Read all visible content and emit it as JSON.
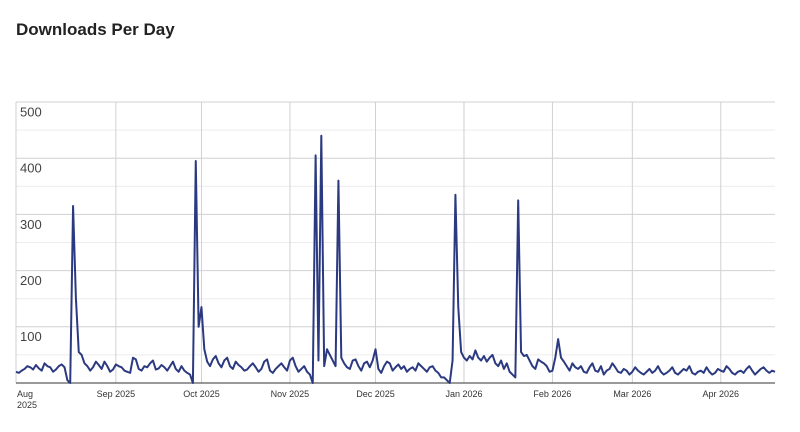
{
  "chart_data": {
    "type": "line",
    "title": "Downloads Per Day",
    "color": "#2b3a80",
    "grid": true,
    "ylim": [
      0,
      500
    ],
    "yticks": [
      100,
      200,
      300,
      400,
      500
    ],
    "categories": [
      "Aug 2025",
      null,
      null,
      null,
      null,
      null,
      null,
      null,
      null,
      null,
      null,
      null,
      null,
      null,
      null,
      null,
      null,
      null,
      null,
      null,
      null,
      null,
      null,
      null,
      null,
      null,
      null,
      null,
      null,
      null,
      null,
      null,
      null,
      null,
      null,
      "Sep 2025",
      null,
      null,
      null,
      null,
      null,
      null,
      null,
      null,
      null,
      null,
      null,
      null,
      null,
      null,
      null,
      null,
      null,
      null,
      null,
      null,
      null,
      null,
      null,
      null,
      null,
      null,
      null,
      null,
      null,
      "Oct 2025",
      null,
      null,
      null,
      null,
      null,
      null,
      null,
      null,
      null,
      null,
      null,
      null,
      null,
      null,
      null,
      null,
      null,
      null,
      null,
      null,
      null,
      null,
      null,
      null,
      null,
      null,
      null,
      null,
      null,
      null,
      "Nov 2025",
      null,
      null,
      null,
      null,
      null,
      null,
      null,
      null,
      null,
      null,
      null,
      null,
      null,
      null,
      null,
      null,
      null,
      null,
      null,
      null,
      null,
      null,
      null,
      null,
      null,
      null,
      null,
      null,
      null,
      "Dec 2025",
      null,
      null,
      null,
      null,
      null,
      null,
      null,
      null,
      null,
      null,
      null,
      null,
      null,
      null,
      null,
      null,
      null,
      null,
      null,
      null,
      null,
      null,
      null,
      null,
      null,
      null,
      null,
      null,
      null,
      null,
      "Jan 2026",
      null,
      null,
      null,
      null,
      null,
      null,
      null,
      null,
      null,
      null,
      null,
      null,
      null,
      null,
      null,
      null,
      null,
      null,
      null,
      null,
      null,
      null,
      null,
      null,
      null,
      null,
      null,
      null,
      null,
      null,
      "Feb 2026",
      null,
      null,
      null,
      null,
      null,
      null,
      null,
      null,
      null,
      null,
      null,
      null,
      null,
      null,
      null,
      null,
      null,
      null,
      null,
      null,
      null,
      null,
      null,
      null,
      null,
      null,
      null,
      "Mar 2026",
      null,
      null,
      null,
      null,
      null,
      null,
      null,
      null,
      null,
      null,
      null,
      null,
      null,
      null,
      null,
      null,
      null,
      null,
      null,
      null,
      null,
      null,
      null,
      null,
      null,
      null,
      null,
      null,
      null,
      null,
      "Apr 2026",
      null,
      null,
      null,
      null,
      null,
      null,
      null,
      null,
      null,
      null,
      null,
      null,
      null,
      null,
      null,
      null,
      null,
      null,
      null
    ],
    "values": [
      20,
      18,
      22,
      25,
      30,
      28,
      24,
      32,
      26,
      22,
      35,
      30,
      28,
      20,
      24,
      30,
      33,
      28,
      5,
      0,
      315,
      150,
      55,
      50,
      35,
      30,
      22,
      28,
      38,
      32,
      25,
      38,
      30,
      20,
      24,
      33,
      30,
      28,
      22,
      20,
      18,
      45,
      42,
      25,
      22,
      30,
      28,
      35,
      40,
      24,
      26,
      32,
      28,
      22,
      30,
      38,
      25,
      20,
      30,
      22,
      18,
      15,
      0,
      395,
      100,
      135,
      60,
      38,
      30,
      42,
      48,
      35,
      28,
      40,
      45,
      30,
      25,
      38,
      32,
      28,
      22,
      24,
      30,
      35,
      28,
      20,
      25,
      38,
      42,
      22,
      18,
      25,
      30,
      35,
      28,
      22,
      40,
      45,
      30,
      20,
      25,
      30,
      20,
      15,
      0,
      405,
      40,
      440,
      30,
      60,
      50,
      40,
      30,
      360,
      45,
      35,
      28,
      25,
      40,
      42,
      30,
      22,
      35,
      38,
      28,
      40,
      60,
      25,
      18,
      30,
      38,
      35,
      22,
      28,
      33,
      25,
      30,
      20,
      25,
      28,
      22,
      35,
      30,
      25,
      20,
      28,
      30,
      22,
      18,
      10,
      10,
      5,
      0,
      40,
      335,
      135,
      55,
      45,
      40,
      48,
      42,
      58,
      45,
      40,
      48,
      38,
      45,
      50,
      35,
      30,
      40,
      25,
      35,
      20,
      15,
      10,
      325,
      55,
      48,
      50,
      40,
      30,
      25,
      42,
      38,
      35,
      30,
      20,
      22,
      45,
      78,
      45,
      38,
      30,
      22,
      35,
      28,
      25,
      30,
      20,
      18,
      28,
      35,
      22,
      20,
      30,
      15,
      22,
      25,
      35,
      28,
      20,
      18,
      25,
      22,
      15,
      20,
      28,
      22,
      18,
      15,
      20,
      25,
      18,
      22,
      30,
      20,
      15,
      18,
      22,
      28,
      18,
      15,
      20,
      25,
      22,
      30,
      18,
      15,
      20,
      22,
      18,
      28,
      20,
      15,
      18,
      25,
      22,
      20,
      30,
      25,
      18,
      15,
      20,
      22,
      18,
      25,
      30,
      22,
      15,
      20,
      25,
      28,
      22,
      18,
      22,
      20
    ]
  }
}
